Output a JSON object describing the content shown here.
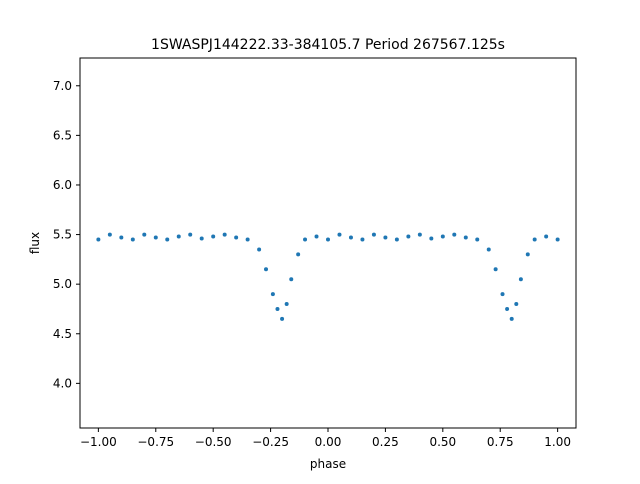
{
  "chart_data": {
    "type": "scatter",
    "title": "1SWASPJ144222.33-384105.7 Period 267567.125s",
    "xlabel": "phase",
    "ylabel": "flux",
    "xlim": [
      -1.08,
      1.08
    ],
    "ylim": [
      3.55,
      7.28
    ],
    "xticks": [
      {
        "value": -1.0,
        "label": "−1.00"
      },
      {
        "value": -0.75,
        "label": "−0.75"
      },
      {
        "value": -0.5,
        "label": "−0.50"
      },
      {
        "value": -0.25,
        "label": "−0.25"
      },
      {
        "value": 0.0,
        "label": "0.00"
      },
      {
        "value": 0.25,
        "label": "0.25"
      },
      {
        "value": 0.5,
        "label": "0.50"
      },
      {
        "value": 0.75,
        "label": "0.75"
      },
      {
        "value": 1.0,
        "label": "1.00"
      }
    ],
    "yticks": [
      {
        "value": 4.0,
        "label": "4.0"
      },
      {
        "value": 4.5,
        "label": "4.5"
      },
      {
        "value": 5.0,
        "label": "5.0"
      },
      {
        "value": 5.5,
        "label": "5.5"
      },
      {
        "value": 6.0,
        "label": "6.0"
      },
      {
        "value": 6.5,
        "label": "6.5"
      },
      {
        "value": 7.0,
        "label": "7.0"
      }
    ],
    "grid": false,
    "legend": "none",
    "series": [
      {
        "color": "#1f77b4",
        "x": [
          -1.0,
          -0.95,
          -0.9,
          -0.85,
          -0.8,
          -0.75,
          -0.7,
          -0.65,
          -0.6,
          -0.55,
          -0.5,
          -0.45,
          -0.4,
          -0.35,
          -0.3,
          -0.27,
          -0.24,
          -0.22,
          -0.2,
          -0.18,
          -0.16,
          -0.13,
          -0.1,
          -0.05,
          0.0,
          0.05,
          0.1,
          0.15,
          0.2,
          0.25,
          0.3,
          0.35,
          0.4,
          0.45,
          0.5,
          0.55,
          0.6,
          0.65,
          0.7,
          0.73,
          0.76,
          0.78,
          0.8,
          0.82,
          0.84,
          0.87,
          0.9,
          0.95,
          1.0
        ],
        "y": [
          5.45,
          5.5,
          5.47,
          5.45,
          5.5,
          5.47,
          5.45,
          5.48,
          5.5,
          5.46,
          5.48,
          5.5,
          5.47,
          5.45,
          5.35,
          5.15,
          4.9,
          4.75,
          4.65,
          4.8,
          5.05,
          5.3,
          5.45,
          5.48,
          5.45,
          5.5,
          5.47,
          5.45,
          5.5,
          5.47,
          5.45,
          5.48,
          5.5,
          5.46,
          5.48,
          5.5,
          5.47,
          5.45,
          5.35,
          5.15,
          4.9,
          4.75,
          4.65,
          4.8,
          5.05,
          5.3,
          5.45,
          5.48,
          5.45
        ]
      }
    ]
  }
}
